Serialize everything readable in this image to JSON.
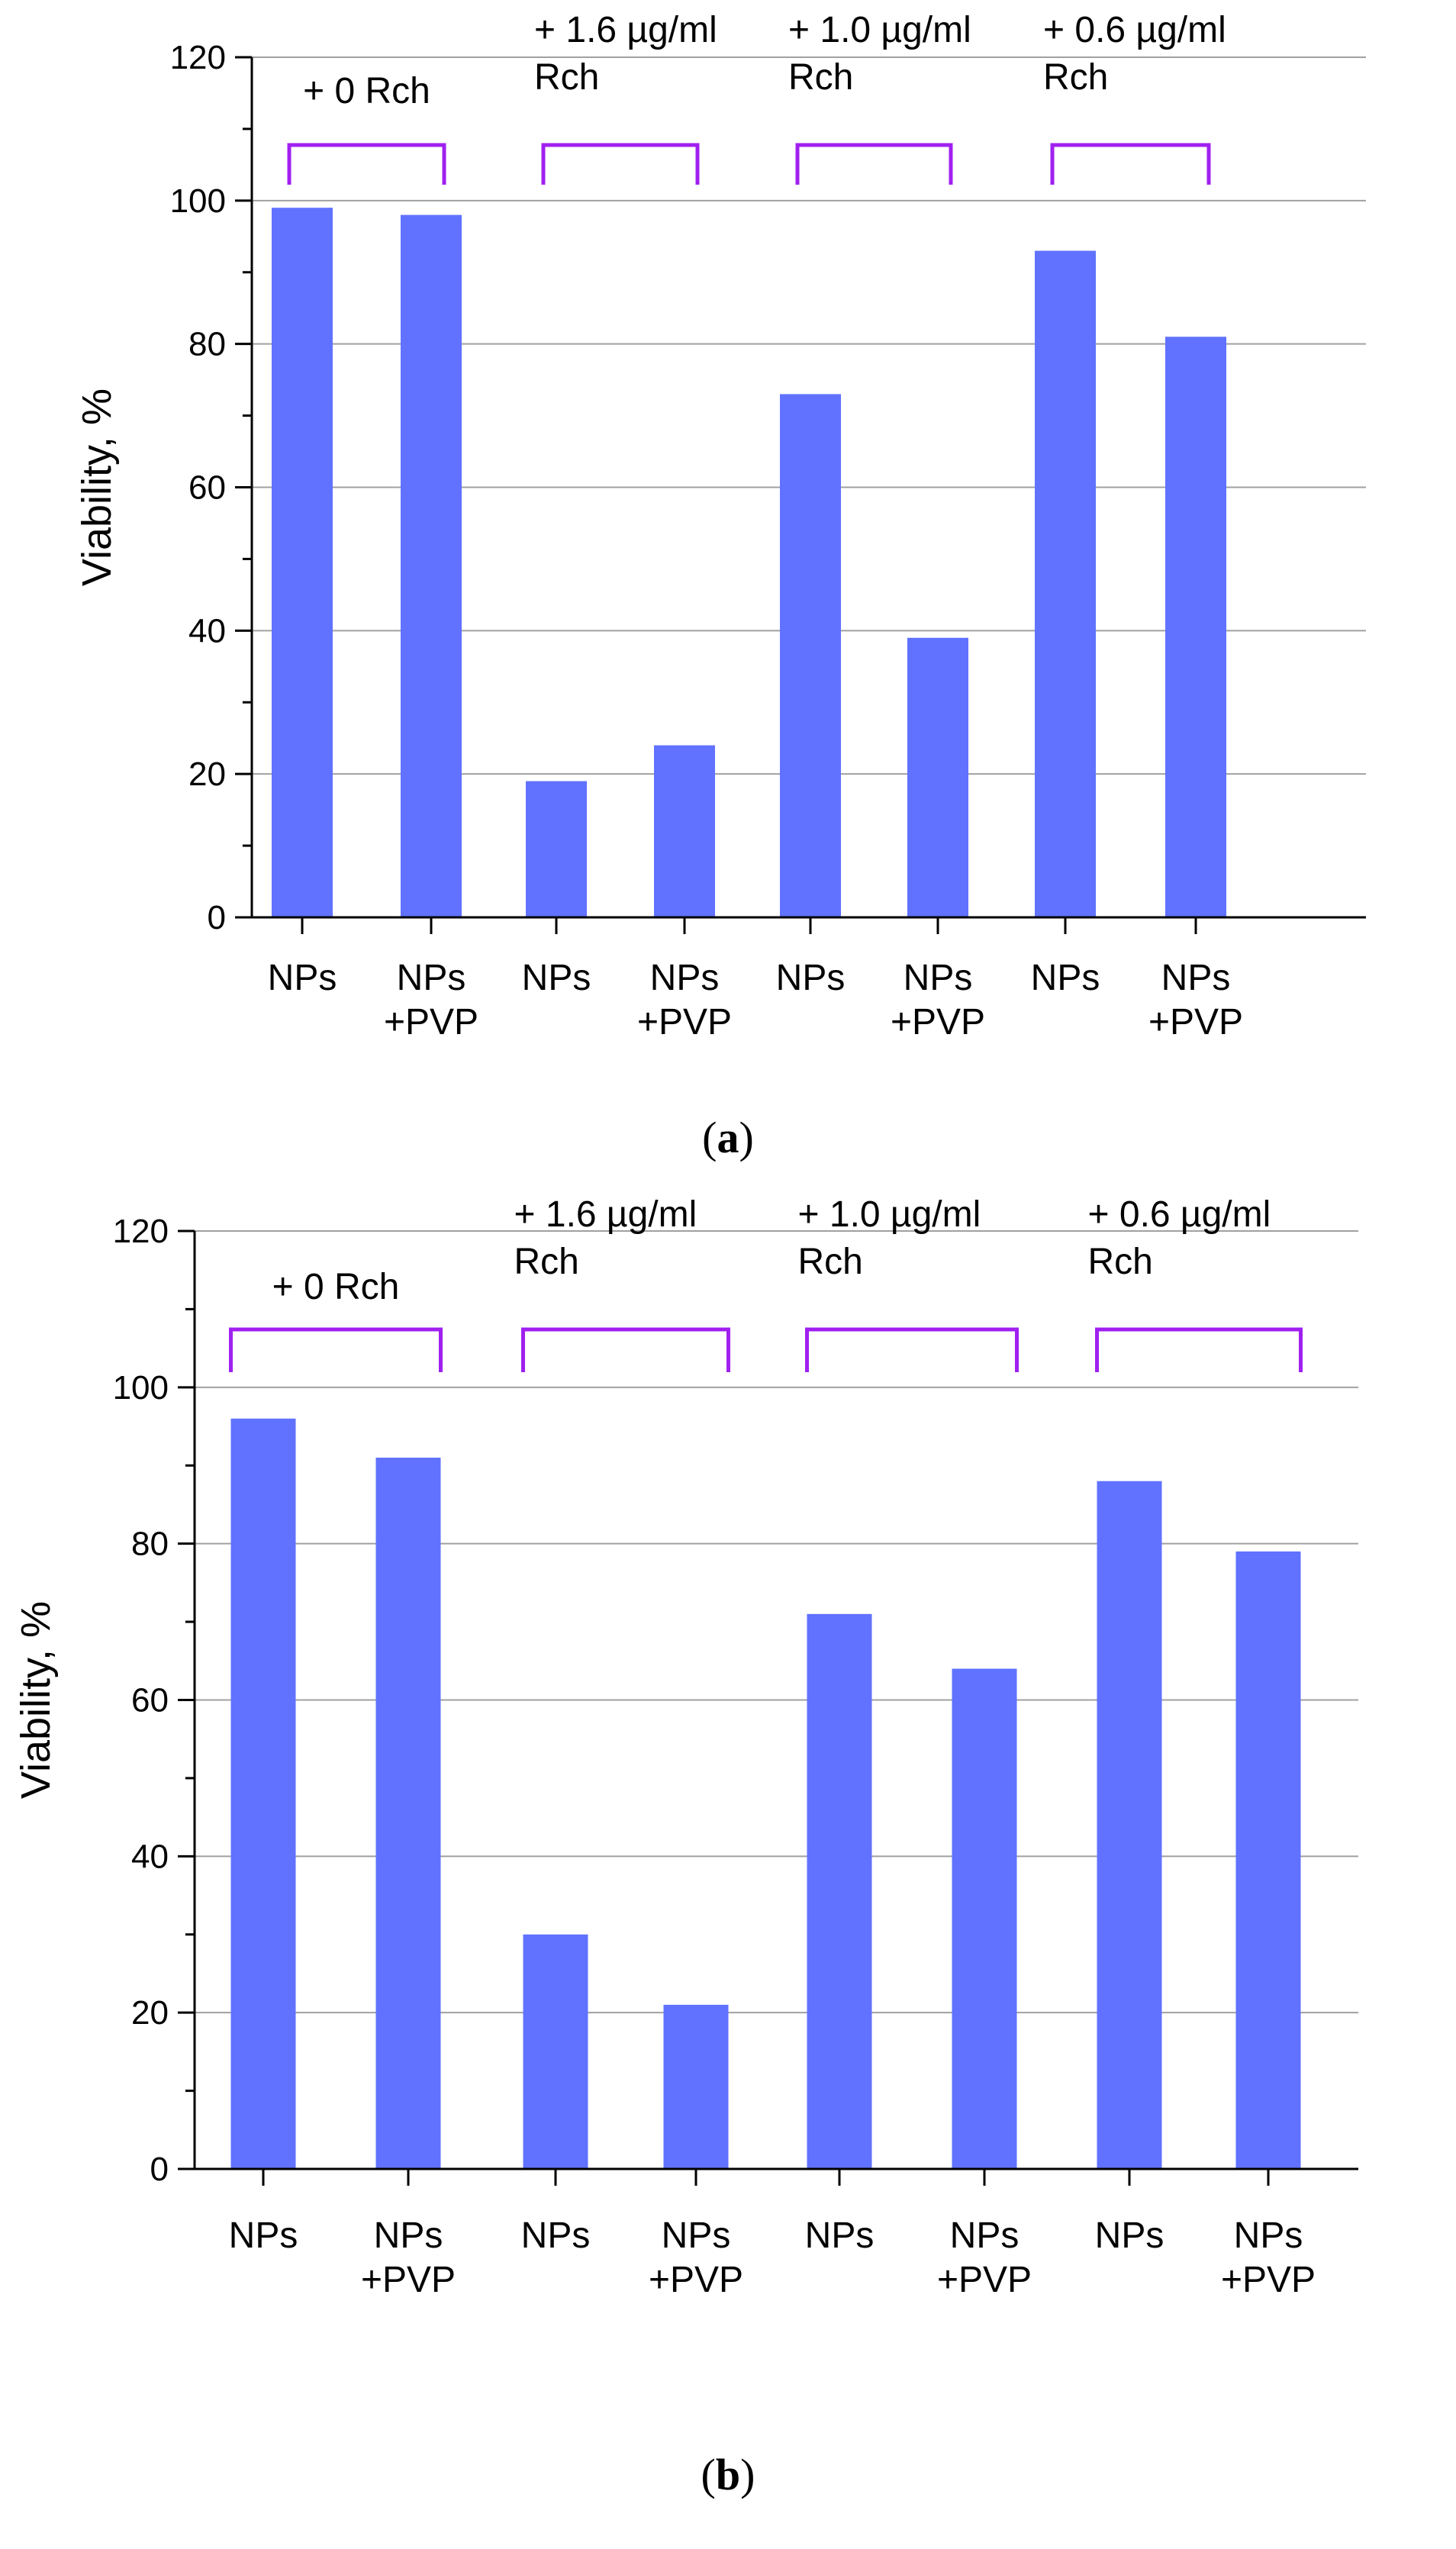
{
  "figure_title": "Viability charts (a) and (b)",
  "colors": {
    "bar": "#6072FF",
    "bracket": "#A020F0",
    "axis": "#000000",
    "grid": "#A0A0A0"
  },
  "chart_data": [
    {
      "panel": "a",
      "type": "bar",
      "title": "",
      "xlabel": "",
      "ylabel": "Viability, %",
      "ylim": [
        0,
        120
      ],
      "yticks": [
        0,
        20,
        40,
        60,
        80,
        100,
        120
      ],
      "grid": true,
      "categories": [
        [
          "NPs"
        ],
        [
          "NPs",
          "+PVP"
        ],
        [
          "NPs"
        ],
        [
          "NPs",
          "+PVP"
        ],
        [
          "NPs"
        ],
        [
          "NPs",
          "+PVP"
        ],
        [
          "NPs"
        ],
        [
          "NPs",
          "+PVP"
        ]
      ],
      "values": [
        99,
        98,
        19,
        24,
        73,
        39,
        93,
        81
      ],
      "groups": [
        {
          "label_lines": [
            "+ 0 Rch"
          ],
          "bars": [
            0,
            1
          ]
        },
        {
          "label_lines": [
            "+ 1.6 µg/ml",
            "Rch"
          ],
          "bars": [
            2,
            3
          ]
        },
        {
          "label_lines": [
            "+ 1.0 µg/ml",
            "Rch"
          ],
          "bars": [
            4,
            5
          ]
        },
        {
          "label_lines": [
            "+ 0.6 µg/ml",
            "Rch"
          ],
          "bars": [
            6,
            7
          ]
        }
      ],
      "panel_label": [
        "(",
        "a",
        ")"
      ]
    },
    {
      "panel": "b",
      "type": "bar",
      "title": "",
      "xlabel": "",
      "ylabel": "Viability, %",
      "ylim": [
        0,
        120
      ],
      "yticks": [
        0,
        20,
        40,
        60,
        80,
        100,
        120
      ],
      "grid": true,
      "categories": [
        [
          "NPs"
        ],
        [
          "NPs",
          "+PVP"
        ],
        [
          "NPs"
        ],
        [
          "NPs",
          "+PVP"
        ],
        [
          "NPs"
        ],
        [
          "NPs",
          "+PVP"
        ],
        [
          "NPs"
        ],
        [
          "NPs",
          "+PVP"
        ]
      ],
      "values": [
        96,
        91,
        30,
        21,
        71,
        64,
        88,
        79
      ],
      "groups": [
        {
          "label_lines": [
            "+ 0 Rch"
          ],
          "bars": [
            0,
            1
          ]
        },
        {
          "label_lines": [
            "+ 1.6 µg/ml",
            "Rch"
          ],
          "bars": [
            2,
            3
          ]
        },
        {
          "label_lines": [
            "+ 1.0 µg/ml",
            "Rch"
          ],
          "bars": [
            4,
            5
          ]
        },
        {
          "label_lines": [
            "+ 0.6 µg/ml",
            "Rch"
          ],
          "bars": [
            6,
            7
          ]
        }
      ],
      "panel_label": [
        "(",
        "b",
        ")"
      ]
    }
  ]
}
